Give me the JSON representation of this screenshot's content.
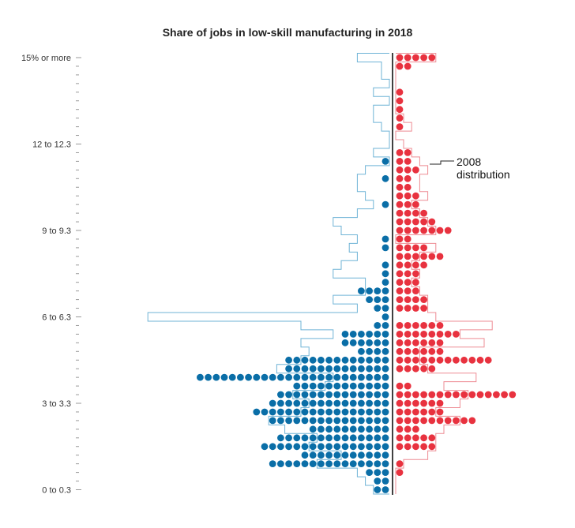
{
  "chart_data": {
    "type": "dot-histogram",
    "title": "Share of jobs in low-skill manufacturing in 2018",
    "y_tick_labels": [
      "15% or more",
      "12 to 12.3",
      "9 to 9.3",
      "6 to 6.3",
      "3 to 3.3",
      "0 to 0.3"
    ],
    "bins": [
      "15% or more",
      "14.7",
      "14.4",
      "14.1",
      "13.8",
      "13.5",
      "13.2",
      "12.9",
      "12.6",
      "12.3",
      "12 to 12.3",
      "11.7",
      "11.4",
      "11.1",
      "10.8",
      "10.5",
      "10.2",
      "9.9",
      "9.6",
      "9.3",
      "9 to 9.3",
      "8.7",
      "8.4",
      "8.1",
      "7.8",
      "7.5",
      "7.2",
      "6.9",
      "6.6",
      "6.3",
      "6 to 6.3",
      "5.7",
      "5.4",
      "5.1",
      "4.8",
      "4.5",
      "4.2",
      "3.9",
      "3.6",
      "3.3",
      "3 to 3.3",
      "2.7",
      "2.4",
      "2.1",
      "1.8",
      "1.5",
      "1.2",
      "0.9",
      "0.6",
      "0.3",
      "0 to 0.3"
    ],
    "series": [
      {
        "side": "left",
        "color": "#0a6ea7",
        "dots_2018": [
          0,
          0,
          0,
          0,
          0,
          0,
          0,
          0,
          0,
          0,
          0,
          0,
          1,
          0,
          1,
          0,
          0,
          1,
          0,
          0,
          0,
          1,
          1,
          0,
          1,
          1,
          1,
          4,
          3,
          2,
          1,
          2,
          6,
          6,
          4,
          13,
          13,
          24,
          12,
          14,
          15,
          17,
          15,
          10,
          14,
          16,
          11,
          15,
          3,
          2,
          2
        ],
        "outline_2008": [
          4,
          1,
          1,
          0,
          2,
          0,
          2,
          2,
          1,
          0,
          0,
          2,
          0,
          3,
          4,
          4,
          3,
          2,
          4,
          7,
          6,
          4,
          5,
          4,
          6,
          7,
          3,
          3,
          7,
          4,
          30,
          11,
          7,
          11,
          10,
          11,
          14,
          7,
          8,
          12,
          10,
          11,
          15,
          13,
          9,
          10,
          6,
          9,
          4,
          3,
          2
        ]
      },
      {
        "side": "right",
        "color": "#e8323f",
        "dots_2018": [
          5,
          2,
          0,
          0,
          1,
          1,
          1,
          1,
          1,
          0,
          0,
          2,
          2,
          3,
          2,
          2,
          3,
          3,
          4,
          5,
          7,
          2,
          4,
          6,
          4,
          3,
          3,
          3,
          4,
          4,
          0,
          6,
          8,
          6,
          6,
          12,
          5,
          0,
          2,
          15,
          6,
          6,
          10,
          3,
          5,
          5,
          0,
          1,
          1,
          0,
          0
        ],
        "outline_2008": [
          5,
          0,
          0,
          0,
          0,
          0,
          0,
          1,
          2,
          0,
          1,
          2,
          3,
          4,
          3,
          3,
          4,
          2,
          3,
          4,
          5,
          0,
          5,
          3,
          2,
          3,
          2,
          3,
          4,
          4,
          5,
          12,
          8,
          11,
          3,
          3,
          4,
          10,
          6,
          9,
          8,
          5,
          8,
          6,
          5,
          5,
          4,
          1,
          0,
          0,
          0
        ]
      }
    ],
    "annotation": {
      "line1": "2008",
      "line2": "distribution"
    },
    "colors": {
      "left": "#0a6ea7",
      "right": "#e8323f",
      "left_outline": "#6fb3d6",
      "right_outline": "#ee8c94",
      "center_line": "#000000"
    }
  }
}
